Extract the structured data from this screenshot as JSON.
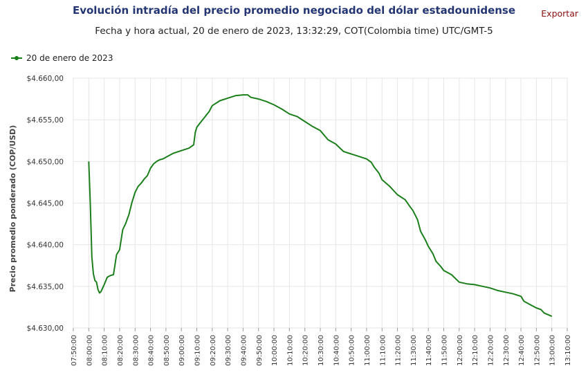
{
  "header": {
    "title": "Evolución intradía del precio promedio negociado del dólar estadounidense",
    "subtitle": "Fecha y hora actual, 20 de enero de 2023, 13:32:29, COT(Colombia time) UTC/GMT-5",
    "export_label": "Exportar"
  },
  "legend": {
    "label": "20 de enero de 2023"
  },
  "colors": {
    "series": "#1a7f1a",
    "title": "#233572",
    "export": "#8a1010",
    "grid": "#e6e6e6"
  },
  "chart_data": {
    "type": "line",
    "title": "Evolución intradía del precio promedio negociado del dólar estadounidense",
    "xlabel": "",
    "ylabel": "Precio promedio ponderado (COP/USD)",
    "ylim": [
      4630,
      4660
    ],
    "xlim_minutes": [
      470,
      790
    ],
    "x_ticks": [
      "07:50:00",
      "08:00:00",
      "08:10:00",
      "08:20:00",
      "08:30:00",
      "08:40:00",
      "08:50:00",
      "09:00:00",
      "09:10:00",
      "09:20:00",
      "09:30:00",
      "09:40:00",
      "09:50:00",
      "10:00:00",
      "10:10:00",
      "10:20:00",
      "10:30:00",
      "10:40:00",
      "10:50:00",
      "11:00:00",
      "11:10:00",
      "11:20:00",
      "11:30:00",
      "11:40:00",
      "11:50:00",
      "12:00:00",
      "12:10:00",
      "12:20:00",
      "12:30:00",
      "12:40:00",
      "12:50:00",
      "13:00:00",
      "13:10:00"
    ],
    "y_ticks": [
      "$4.630,00",
      "$4.635,00",
      "$4.640,00",
      "$4.645,00",
      "$4.650,00",
      "$4.655,00",
      "$4.660,00"
    ],
    "y_tick_values": [
      4630,
      4635,
      4640,
      4645,
      4650,
      4655,
      4660
    ],
    "series": [
      {
        "name": "20 de enero de 2023",
        "x": [
          "08:00",
          "08:01",
          "08:02",
          "08:03",
          "08:04",
          "08:05",
          "08:06",
          "08:07",
          "08:08",
          "08:10",
          "08:12",
          "08:14",
          "08:16",
          "08:18",
          "08:20",
          "08:22",
          "08:24",
          "08:26",
          "08:28",
          "08:30",
          "08:32",
          "08:34",
          "08:36",
          "08:38",
          "08:40",
          "08:42",
          "08:44",
          "08:46",
          "08:48",
          "08:50",
          "08:55",
          "09:00",
          "09:05",
          "09:08",
          "09:09",
          "09:10",
          "09:12",
          "09:15",
          "09:18",
          "09:20",
          "09:25",
          "09:30",
          "09:35",
          "09:40",
          "09:43",
          "09:45",
          "09:50",
          "09:55",
          "10:00",
          "10:05",
          "10:10",
          "10:15",
          "10:20",
          "10:25",
          "10:30",
          "10:35",
          "10:40",
          "10:45",
          "10:50",
          "10:55",
          "11:00",
          "11:03",
          "11:05",
          "11:08",
          "11:10",
          "11:15",
          "11:20",
          "11:25",
          "11:28",
          "11:30",
          "11:33",
          "11:35",
          "11:38",
          "11:40",
          "11:43",
          "11:45",
          "11:48",
          "11:50",
          "11:55",
          "12:00",
          "12:05",
          "12:10",
          "12:15",
          "12:20",
          "12:25",
          "12:30",
          "12:35",
          "12:40",
          "12:42",
          "12:45",
          "12:50",
          "12:53",
          "12:55",
          "13:00"
        ],
        "values": [
          4650.0,
          4645.0,
          4638.5,
          4636.5,
          4635.7,
          4635.5,
          4634.6,
          4634.2,
          4634.4,
          4635.2,
          4636.1,
          4636.3,
          4636.4,
          4638.8,
          4639.4,
          4641.8,
          4642.6,
          4643.6,
          4645.1,
          4646.3,
          4647.0,
          4647.4,
          4647.9,
          4648.3,
          4649.2,
          4649.7,
          4650.0,
          4650.2,
          4650.3,
          4650.5,
          4651.0,
          4651.3,
          4651.6,
          4652.0,
          4653.5,
          4654.1,
          4654.6,
          4655.3,
          4656.0,
          4656.7,
          4657.3,
          4657.6,
          4657.9,
          4658.0,
          4658.0,
          4657.7,
          4657.5,
          4657.2,
          4656.8,
          4656.3,
          4655.7,
          4655.4,
          4654.8,
          4654.2,
          4653.7,
          4652.6,
          4652.1,
          4651.2,
          4650.9,
          4650.6,
          4650.3,
          4649.9,
          4649.3,
          4648.6,
          4647.8,
          4647.0,
          4646.0,
          4645.4,
          4644.6,
          4644.1,
          4643.0,
          4641.6,
          4640.6,
          4639.8,
          4638.9,
          4638.0,
          4637.4,
          4636.9,
          4636.4,
          4635.5,
          4635.3,
          4635.2,
          4635.0,
          4634.8,
          4634.5,
          4634.3,
          4634.1,
          4633.8,
          4633.2,
          4632.9,
          4632.4,
          4632.2,
          4631.8,
          4631.4
        ]
      }
    ]
  }
}
